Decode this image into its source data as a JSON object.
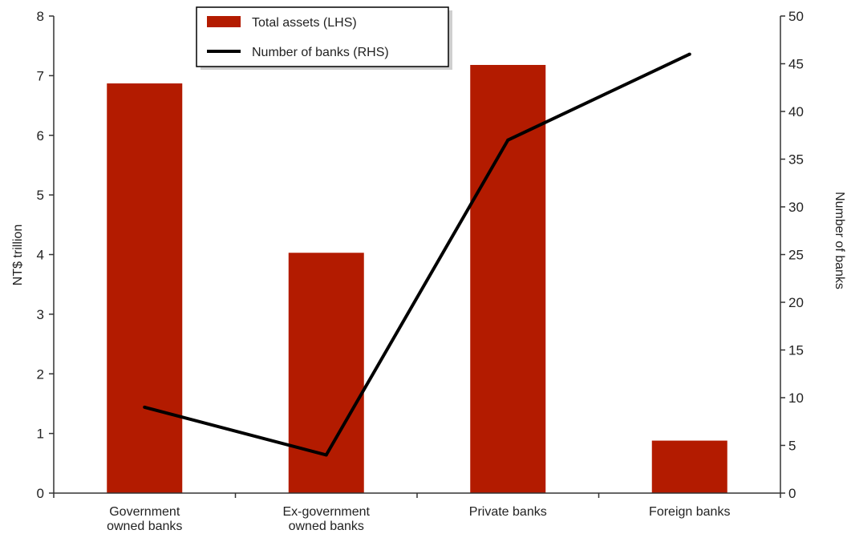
{
  "chart_data": {
    "type": "bar",
    "categories": [
      [
        "Government",
        "owned banks"
      ],
      [
        "Ex-government",
        "owned banks"
      ],
      [
        "Private banks"
      ],
      [
        "Foreign banks"
      ]
    ],
    "series": [
      {
        "name": "Total assets (LHS)",
        "type": "bar",
        "axis": "left",
        "values": [
          6.87,
          4.03,
          7.18,
          0.88
        ]
      },
      {
        "name": "Number of banks (RHS)",
        "type": "line",
        "axis": "right",
        "values": [
          9,
          4,
          37,
          46
        ]
      }
    ],
    "ylabel_left": "NT$ trillion",
    "ylabel_right": "Number of banks",
    "ylim_left": [
      0,
      8
    ],
    "ylim_right": [
      0,
      50
    ],
    "yticks_left": [
      "0",
      "1",
      "2",
      "3",
      "4",
      "5",
      "6",
      "7",
      "8"
    ],
    "yticks_right": [
      "0",
      "5",
      "10",
      "15",
      "20",
      "25",
      "30",
      "35",
      "40",
      "45",
      "50"
    ],
    "legend_position": "top-center",
    "grid": false,
    "colors": {
      "bar": "#b31b00",
      "line": "#000000",
      "axis": "#333333"
    }
  }
}
